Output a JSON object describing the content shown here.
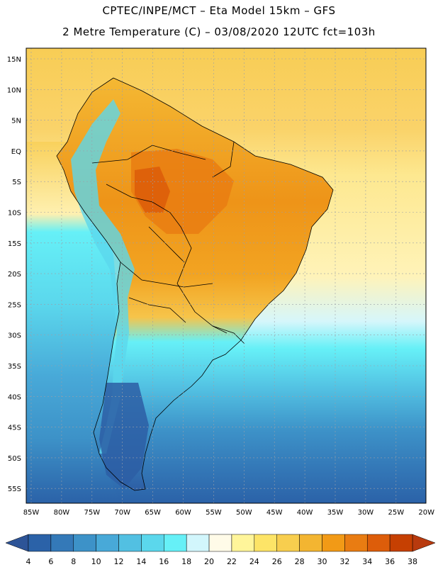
{
  "header": {
    "line1": "CPTEC/INPE/MCT –   Eta Model 15km – GFS",
    "line2": "2 Metre Temperature (C) – 03/08/2020 12UTC fct=103h"
  },
  "map": {
    "lat_labels": [
      "15N",
      "10N",
      "5N",
      "EQ",
      "5S",
      "10S",
      "15S",
      "20S",
      "25S",
      "30S",
      "35S",
      "40S",
      "45S",
      "50S",
      "55S"
    ],
    "lon_labels": [
      "85W",
      "80W",
      "75W",
      "70W",
      "65W",
      "60W",
      "55W",
      "50W",
      "45W",
      "40W",
      "35W",
      "30W",
      "25W",
      "20W"
    ]
  },
  "colorbar": {
    "labels": [
      "4",
      "6",
      "8",
      "10",
      "12",
      "14",
      "16",
      "18",
      "20",
      "22",
      "24",
      "26",
      "28",
      "30",
      "32",
      "34",
      "36",
      "38"
    ],
    "colors": [
      "#2b62a8",
      "#3479b8",
      "#3d92c8",
      "#48a9d8",
      "#52c0e2",
      "#5bd7ec",
      "#66f0f7",
      "#d2f6fc",
      "#fffbe8",
      "#fff59a",
      "#fde467",
      "#f8ce4e",
      "#f3b531",
      "#f29a16",
      "#e97c12",
      "#dd5d0a",
      "#c64002"
    ],
    "left_cap": "#2d5497",
    "right_cap": "#b83a0e"
  }
}
